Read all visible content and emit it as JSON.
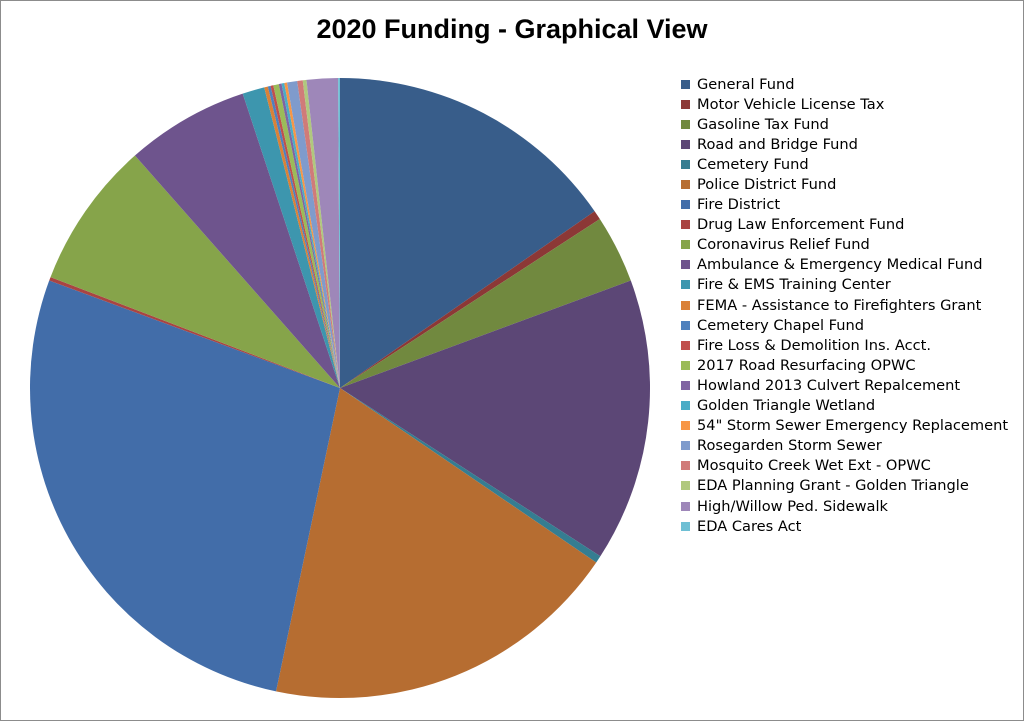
{
  "chart_data": {
    "type": "pie",
    "title": "2020 Funding - Graphical View",
    "legend_position": "right",
    "slices": [
      {
        "label": "General Fund",
        "value": 16.0,
        "color": "#385d8a"
      },
      {
        "label": "Motor Vehicle License Tax",
        "value": 0.5,
        "color": "#8c3836"
      },
      {
        "label": "Gasoline Tax Fund",
        "value": 3.7,
        "color": "#71893f"
      },
      {
        "label": "Road and Bridge Fund",
        "value": 15.4,
        "color": "#5c4776"
      },
      {
        "label": "Cemetery Fund",
        "value": 0.4,
        "color": "#357d91"
      },
      {
        "label": "Police District Fund",
        "value": 19.6,
        "color": "#b66d31"
      },
      {
        "label": "Fire District",
        "value": 28.5,
        "color": "#426da9"
      },
      {
        "label": "Drug Law Enforcement Fund",
        "value": 0.2,
        "color": "#a94442"
      },
      {
        "label": "Coronavirus Relief Fund",
        "value": 8.0,
        "color": "#86a44a"
      },
      {
        "label": "Ambulance & Emergency Medical Fund",
        "value": 6.7,
        "color": "#6e548d"
      },
      {
        "label": "Fire & EMS Training Center",
        "value": 1.2,
        "color": "#3d96ae"
      },
      {
        "label": "FEMA - Assistance to Firefighters Grant",
        "value": 0.2,
        "color": "#da8137"
      },
      {
        "label": "Cemetery Chapel Fund",
        "value": 0.15,
        "color": "#4f81bd"
      },
      {
        "label": "Fire Loss & Demolition Ins. Acct.",
        "value": 0.15,
        "color": "#c0504d"
      },
      {
        "label": "2017 Road Resurfacing OPWC",
        "value": 0.3,
        "color": "#9bbb59"
      },
      {
        "label": "Howland 2013 Culvert Repalcement",
        "value": 0.15,
        "color": "#8064a2"
      },
      {
        "label": "Golden Triangle Wetland",
        "value": 0.15,
        "color": "#4bacc6"
      },
      {
        "label": "54\" Storm Sewer Emergency Replacement",
        "value": 0.15,
        "color": "#f79646"
      },
      {
        "label": "Rosegarden Storm Sewer",
        "value": 0.55,
        "color": "#7f9bcc"
      },
      {
        "label": "Mosquito Creek Wet Ext - OPWC",
        "value": 0.3,
        "color": "#d07b79"
      },
      {
        "label": "EDA Planning Grant - Golden Triangle",
        "value": 0.2,
        "color": "#b0c87e"
      },
      {
        "label": "High/Willow Ped. Sidewalk",
        "value": 1.7,
        "color": "#9e87b9"
      },
      {
        "label": "EDA Cares Act",
        "value": 0.1,
        "color": "#6ebfd4"
      }
    ]
  }
}
